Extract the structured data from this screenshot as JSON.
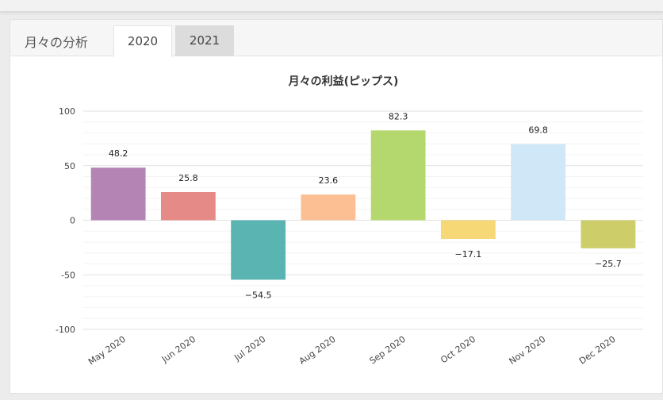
{
  "tabs": {
    "title": "月々の分析",
    "items": [
      {
        "label": "2020",
        "active": true
      },
      {
        "label": "2021",
        "active": false
      }
    ]
  },
  "chart_data": {
    "type": "bar",
    "title": "月々の利益(ピップス)",
    "categories": [
      "May 2020",
      "Jun 2020",
      "Jul 2020",
      "Aug 2020",
      "Sep 2020",
      "Oct 2020",
      "Nov 2020",
      "Dec 2020"
    ],
    "values": [
      48.2,
      25.8,
      -54.5,
      23.6,
      82.3,
      -17.1,
      69.8,
      -25.7
    ],
    "labels": [
      "48.2",
      "25.8",
      "−54.5",
      "23.6",
      "82.3",
      "−17.1",
      "69.8",
      "−25.7"
    ],
    "colors": [
      "#b384b4",
      "#e58a86",
      "#5ab5b2",
      "#fcbf94",
      "#b5d86e",
      "#f6d877",
      "#cfe7f7",
      "#cdcd6a"
    ],
    "ylim": [
      -100,
      100
    ],
    "yticks": [
      100,
      50,
      0,
      -50,
      -100
    ],
    "ytick_labels": [
      "100",
      "50",
      "0",
      "-50",
      "-100"
    ],
    "xlabel": "",
    "ylabel": "",
    "grid": true,
    "legend": "none"
  }
}
